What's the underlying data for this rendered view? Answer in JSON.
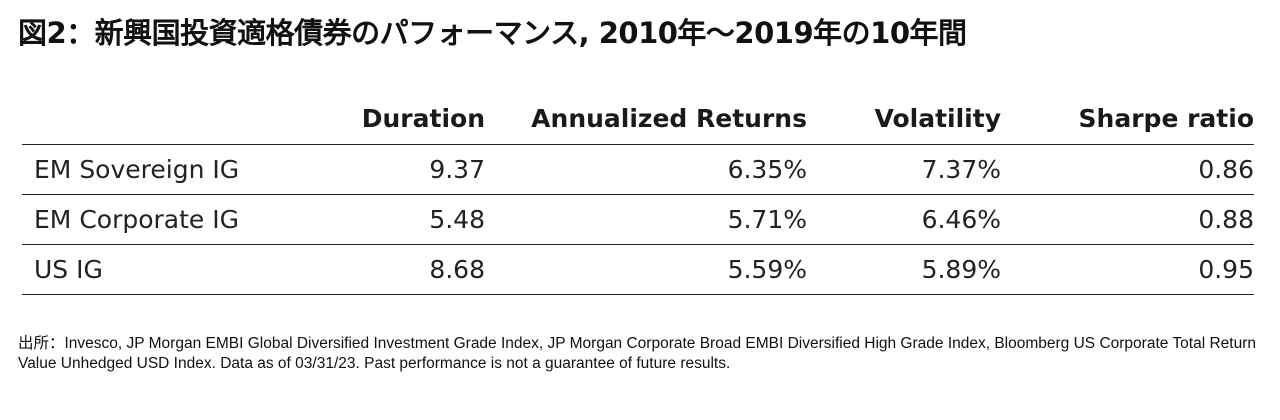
{
  "title": "図2：新興国投資適格債券のパフォーマンス, 2010年～2019年の10年間",
  "table": {
    "columns": [
      "",
      "Duration",
      "Annualized Returns",
      "Volatility",
      "Sharpe ratio"
    ],
    "rows": [
      {
        "label": "EM Sovereign IG",
        "duration": "9.37",
        "returns": "6.35%",
        "volatility": "7.37%",
        "sharpe": "0.86"
      },
      {
        "label": "EM Corporate IG",
        "duration": "5.48",
        "returns": "5.71%",
        "volatility": "6.46%",
        "sharpe": "0.88"
      },
      {
        "label": "US IG",
        "duration": "8.68",
        "returns": "5.59%",
        "volatility": "5.89%",
        "sharpe": "0.95"
      }
    ]
  },
  "source": "出所：Invesco, JP Morgan EMBI Global Diversified Investment Grade Index, JP Morgan Corporate Broad EMBI Diversified High Grade Index, Bloomberg US Corporate Total Return Value Unhedged USD Index. Data as of 03/31/23. Past performance is not a guarantee of future results."
}
